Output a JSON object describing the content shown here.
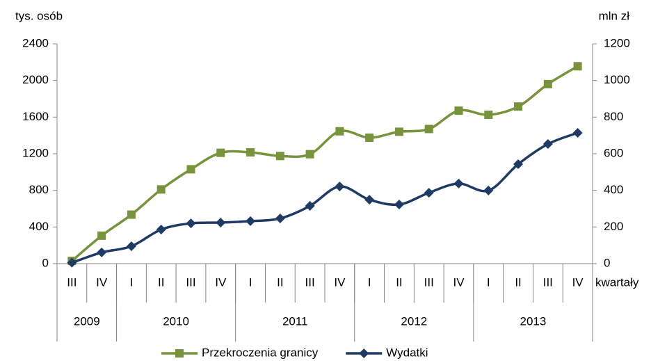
{
  "chart_data": {
    "type": "line",
    "y_label": "tys. osób",
    "y2_label": "mln zł",
    "x_label": "kwartały",
    "categories": [
      "III",
      "IV",
      "I",
      "II",
      "III",
      "IV",
      "I",
      "II",
      "III",
      "IV",
      "I",
      "II",
      "III",
      "IV",
      "I",
      "II",
      "III",
      "IV"
    ],
    "groups": [
      {
        "label": "2009",
        "count": 2
      },
      {
        "label": "2010",
        "count": 4
      },
      {
        "label": "2011",
        "count": 4
      },
      {
        "label": "2012",
        "count": 4
      },
      {
        "label": "2013",
        "count": 4
      }
    ],
    "series": [
      {
        "name": "Przekroczenia granicy",
        "color": "#77933c",
        "marker": "square",
        "axis": "y",
        "values": [
          30,
          305,
          535,
          810,
          1030,
          1210,
          1215,
          1175,
          1195,
          1445,
          1375,
          1440,
          1470,
          1670,
          1625,
          1715,
          1960,
          2155
        ]
      },
      {
        "name": "Wydatki",
        "color": "#1f3b64",
        "marker": "diamond",
        "axis": "y2",
        "values": [
          5,
          61,
          95,
          186,
          220,
          224,
          232,
          247,
          315,
          421,
          349,
          323,
          387,
          437,
          399,
          543,
          653,
          714
        ]
      }
    ],
    "ylim": [
      0,
      2400
    ],
    "yticks": [
      0,
      400,
      800,
      1200,
      1600,
      2000,
      2400
    ],
    "y2lim": [
      0,
      1200
    ],
    "y2ticks": [
      0,
      200,
      400,
      600,
      800,
      1000,
      1200
    ],
    "legend": "bottom"
  }
}
